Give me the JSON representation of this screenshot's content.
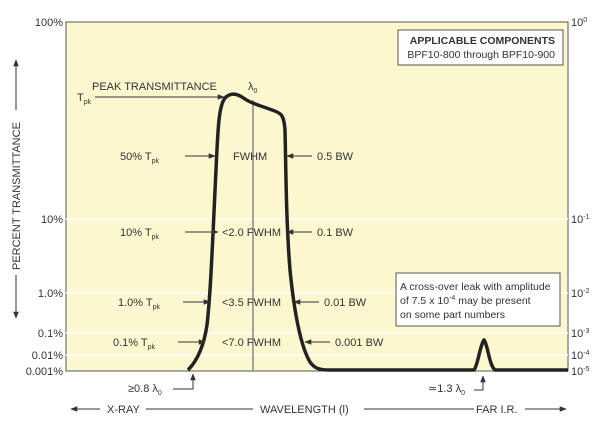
{
  "chart_data": {
    "type": "line",
    "ylabel": "PERCENT TRANSMITTANCE",
    "xlabel": "WAVELENGTH (l)",
    "x_left_label": "X-RAY",
    "x_right_label": "FAR I.R.",
    "y_ticks_left": [
      "100%",
      "10%",
      "1.0%",
      "0.1%",
      "0.01%",
      "0.001%"
    ],
    "y_ticks_right": [
      {
        "base": "10",
        "exp": "0"
      },
      {
        "base": "10",
        "exp": "-1"
      },
      {
        "base": "10",
        "exp": "-2"
      },
      {
        "base": "10",
        "exp": "-3"
      },
      {
        "base": "10",
        "exp": "-4"
      },
      {
        "base": "10",
        "exp": "-5"
      }
    ],
    "y_scale": "log",
    "grid": true,
    "plot_background": "#fdf7cf",
    "curve_color": "#222222",
    "center_label": {
      "main": "λ",
      "sub": "0"
    },
    "peak": {
      "label": "PEAK TRANSMITTANCE",
      "symbol": "T",
      "sub": "pk"
    },
    "levels": [
      {
        "left": "50% T",
        "sub": "pk",
        "mid": "FWHM",
        "right": "0.5 BW"
      },
      {
        "left": "10% T",
        "sub": "pk",
        "mid": "<2.0 FWHM",
        "right": "0.1 BW"
      },
      {
        "left": "1.0% T",
        "sub": "pk",
        "mid": "<3.5 FWHM",
        "right": "0.01 BW"
      },
      {
        "left": "0.1% T",
        "sub": "pk",
        "mid": "<7.0 FWHM",
        "right": "0.001 BW"
      }
    ],
    "cutoff_low": {
      "text": "≥0.8 λ",
      "sub": "0"
    },
    "leak_position": {
      "text": "≃1.3 λ",
      "sub": "0"
    },
    "components_box": {
      "title": "APPLICABLE COMPONENTS",
      "text": "BPF10-800 through BPF10-900"
    },
    "leak_note": {
      "line1": "A cross-over leak with amplitude",
      "line2_pre": "of 7.5 x 10",
      "line2_exp": "-4",
      "line2_post": " may be present",
      "line3": "on some part numbers"
    }
  }
}
